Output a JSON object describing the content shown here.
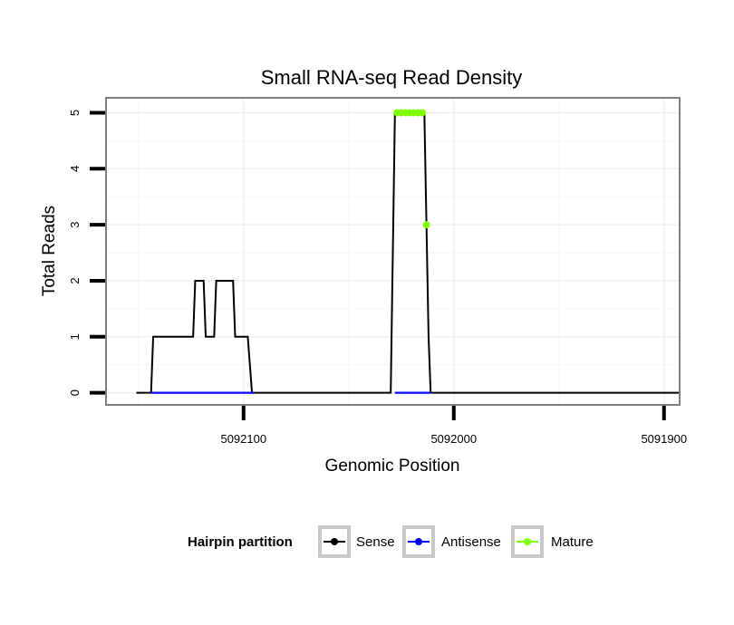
{
  "chart_data": {
    "type": "line",
    "title": "Small RNA-seq Read Density",
    "xlabel": "Genomic Position",
    "ylabel": "Total Reads",
    "xlim": [
      5092165,
      5091893
    ],
    "ylim": [
      -0.2,
      5.25
    ],
    "x_reversed": true,
    "xticks": [
      5092100,
      5092000,
      5091900
    ],
    "xtick_labels": [
      "5092100",
      "5092000",
      "5091900"
    ],
    "yticks": [
      0,
      1,
      2,
      3,
      4,
      5
    ],
    "ytick_labels": [
      "0",
      "1",
      "2",
      "3",
      "4",
      "5"
    ],
    "grid": true,
    "legend": {
      "title": "Hairpin partition",
      "position": "bottom",
      "entries": [
        "Sense",
        "Antisense",
        "Mature"
      ]
    },
    "series": [
      {
        "name": "Sense",
        "color": "#000000",
        "x": [
          5092151,
          5092144,
          5092143,
          5092124,
          5092123,
          5092119,
          5092118,
          5092114,
          5092113,
          5092105,
          5092104,
          5092098,
          5092097,
          5092096,
          5092095,
          5092030,
          5092028,
          5092014,
          5092013,
          5092012,
          5092011,
          5091893
        ],
        "y": [
          0,
          0,
          1,
          1,
          2,
          2,
          1,
          1,
          2,
          2,
          1,
          1,
          0.5,
          0,
          0,
          0,
          5,
          5,
          3,
          1,
          0,
          0
        ]
      },
      {
        "name": "Antisense",
        "color": "#0000ff",
        "x": [
          5092144,
          5092095,
          5092028,
          5092011
        ],
        "y": [
          0,
          0,
          0,
          0
        ],
        "segments": [
          [
            0,
            1
          ],
          [
            2,
            3
          ]
        ]
      },
      {
        "name": "Mature",
        "color": "#7fff00",
        "x": [
          5092027,
          5092025,
          5092023,
          5092021,
          5092019,
          5092017,
          5092015,
          5092013
        ],
        "y": [
          5,
          5,
          5,
          5,
          5,
          5,
          5,
          3
        ]
      }
    ]
  }
}
